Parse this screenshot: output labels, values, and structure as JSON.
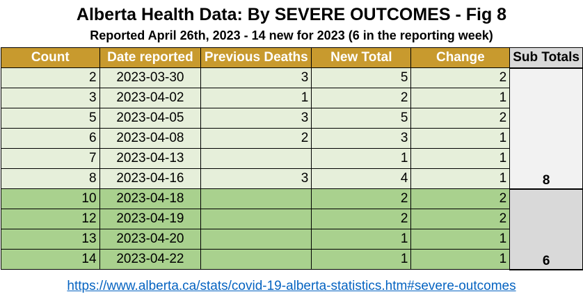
{
  "title": "Alberta Health Data: By SEVERE OUTCOMES - Fig 8",
  "subtitle": "Reported April 26th, 2023 -  14 new for 2023 (6 in the reporting week)",
  "headers": {
    "count": "Count",
    "date": "Date reported",
    "previous": "Previous Deaths",
    "new_total": "New Total",
    "change": "Change",
    "subtotals": "Sub Totals"
  },
  "colors": {
    "header_gold": "#c89a2e",
    "row_light_green": "#e6efda",
    "row_dark_green": "#a9d18e",
    "subtotal_grey": "#d9d9d9",
    "link_blue": "#0563c1"
  },
  "rows": [
    {
      "count": "2",
      "date": "2023-03-30",
      "previous": "3",
      "new_total": "5",
      "change": "2"
    },
    {
      "count": "3",
      "date": "2023-04-02",
      "previous": "1",
      "new_total": "2",
      "change": "1"
    },
    {
      "count": "5",
      "date": "2023-04-05",
      "previous": "3",
      "new_total": "5",
      "change": "2"
    },
    {
      "count": "6",
      "date": "2023-04-08",
      "previous": "2",
      "new_total": "3",
      "change": "1"
    },
    {
      "count": "7",
      "date": "2023-04-13",
      "previous": "",
      "new_total": "1",
      "change": "1"
    },
    {
      "count": "8",
      "date": "2023-04-16",
      "previous": "3",
      "new_total": "4",
      "change": "1"
    },
    {
      "count": "10",
      "date": "2023-04-18",
      "previous": "",
      "new_total": "2",
      "change": "2"
    },
    {
      "count": "12",
      "date": "2023-04-19",
      "previous": "",
      "new_total": "2",
      "change": "2"
    },
    {
      "count": "13",
      "date": "2023-04-20",
      "previous": "",
      "new_total": "1",
      "change": "1"
    },
    {
      "count": "14",
      "date": "2023-04-22",
      "previous": "",
      "new_total": "1",
      "change": "1"
    }
  ],
  "subtotals": [
    "8",
    "6"
  ],
  "source_link": "https://www.alberta.ca/stats/covid-19-alberta-statistics.htm#severe-outcomes"
}
